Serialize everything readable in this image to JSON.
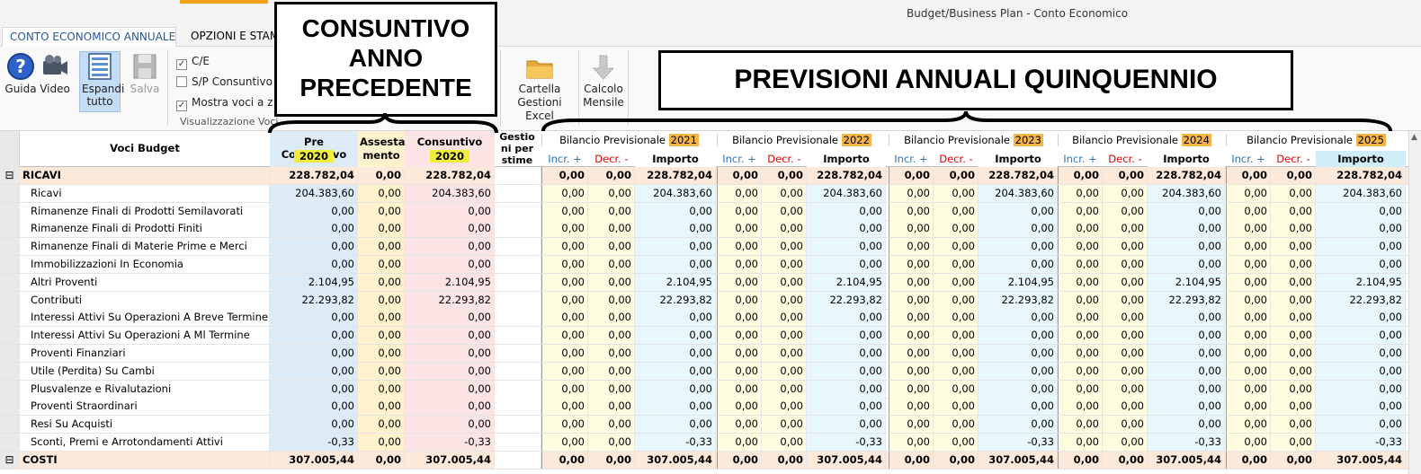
{
  "window": {
    "title": "Budget/Business Plan - Conto Economico"
  },
  "tabs": [
    {
      "label": "CONTO ECONOMICO ANNUALE"
    },
    {
      "label": "OPZIONI E STAMPE"
    }
  ],
  "ribbon": {
    "guida": "Guida",
    "video": "Video",
    "espandi": "Espandi tutto",
    "salva": "Salva",
    "ce": "C/E",
    "sp": "S/P Consuntivo",
    "mostra": "Mostra voci a zero",
    "group_label": "Visualizzazione Voci",
    "cartella": "Cartella Gestioni Excel",
    "calcolo": "Calcolo Mensile"
  },
  "callouts": {
    "consuntivo": "CONSUNTIVO ANNO PRECEDENTE",
    "previsioni": "PREVISIONI ANNUALI QUINQUENNIO"
  },
  "grid": {
    "headers": {
      "voci": "Voci Budget",
      "pre_consuntivo": "Pre Consuntivo",
      "pre_year": "2020",
      "assestamento": "Assesta mento",
      "consuntivo": "Consuntivo",
      "cons_year": "2020",
      "gestioni": "Gestio ni per stime",
      "bilancio": "Bilancio Previsionale",
      "incr": "Incr. +",
      "decr": "Decr. -",
      "importo": "Importo"
    },
    "years": [
      "2021",
      "2022",
      "2023",
      "2024",
      "2025"
    ],
    "rows": [
      {
        "label": "RICAVI",
        "group": true,
        "pre": "228.782,04",
        "ass": "0,00",
        "cons": "228.782,04",
        "imp": "228.782,04"
      },
      {
        "label": "Ricavi",
        "pre": "204.383,60",
        "ass": "0,00",
        "cons": "204.383,60",
        "imp": "204.383,60"
      },
      {
        "label": "Rimanenze Finali di Prodotti Semilavorati",
        "pre": "0,00",
        "ass": "0,00",
        "cons": "0,00",
        "imp": "0,00"
      },
      {
        "label": "Rimanenze Finali di Prodotti Finiti",
        "pre": "0,00",
        "ass": "0,00",
        "cons": "0,00",
        "imp": "0,00"
      },
      {
        "label": "Rimanenze Finali di Materie Prime e Merci",
        "pre": "0,00",
        "ass": "0,00",
        "cons": "0,00",
        "imp": "0,00"
      },
      {
        "label": "Immobilizzazioni In Economia",
        "pre": "0,00",
        "ass": "0,00",
        "cons": "0,00",
        "imp": "0,00"
      },
      {
        "label": "Altri Proventi",
        "pre": "2.104,95",
        "ass": "0,00",
        "cons": "2.104,95",
        "imp": "2.104,95"
      },
      {
        "label": "Contributi",
        "pre": "22.293,82",
        "ass": "0,00",
        "cons": "22.293,82",
        "imp": "22.293,82"
      },
      {
        "label": "Interessi Attivi Su Operazioni A Breve Termine",
        "pre": "0,00",
        "ass": "0,00",
        "cons": "0,00",
        "imp": "0,00"
      },
      {
        "label": "Interessi Attivi Su Operazioni A Ml Termine",
        "pre": "0,00",
        "ass": "0,00",
        "cons": "0,00",
        "imp": "0,00"
      },
      {
        "label": "Proventi Finanziari",
        "pre": "0,00",
        "ass": "0,00",
        "cons": "0,00",
        "imp": "0,00"
      },
      {
        "label": "Utile (Perdita) Su Cambi",
        "pre": "0,00",
        "ass": "0,00",
        "cons": "0,00",
        "imp": "0,00"
      },
      {
        "label": "Plusvalenze e Rivalutazioni",
        "pre": "0,00",
        "ass": "0,00",
        "cons": "0,00",
        "imp": "0,00"
      },
      {
        "label": "Proventi Straordinari",
        "pre": "0,00",
        "ass": "0,00",
        "cons": "0,00",
        "imp": "0,00"
      },
      {
        "label": "Resi Su Acquisti",
        "pre": "0,00",
        "ass": "0,00",
        "cons": "0,00",
        "imp": "0,00"
      },
      {
        "label": "Sconti, Premi e Arrotondamenti  Attivi",
        "pre": "-0,33",
        "ass": "0,00",
        "cons": "-0,33",
        "imp": "-0,33"
      },
      {
        "label": "COSTI",
        "group": true,
        "pre": "307.005,44",
        "ass": "0,00",
        "cons": "307.005,44",
        "imp": "307.005,44"
      }
    ],
    "zero": "0,00",
    "collapse_symbol": "⊟"
  },
  "colors": {
    "group_bg": "#fde9d9",
    "pre_bg": "#ddebf7",
    "ass_bg": "#fff2cc",
    "cons_bg": "#fce4e4",
    "inc_bg": "#fffde0",
    "imp_bg": "#e7f7fb",
    "incr_text": "#2e75b6",
    "decr_text": "#e00000",
    "year_highlight": "#f4b447"
  }
}
